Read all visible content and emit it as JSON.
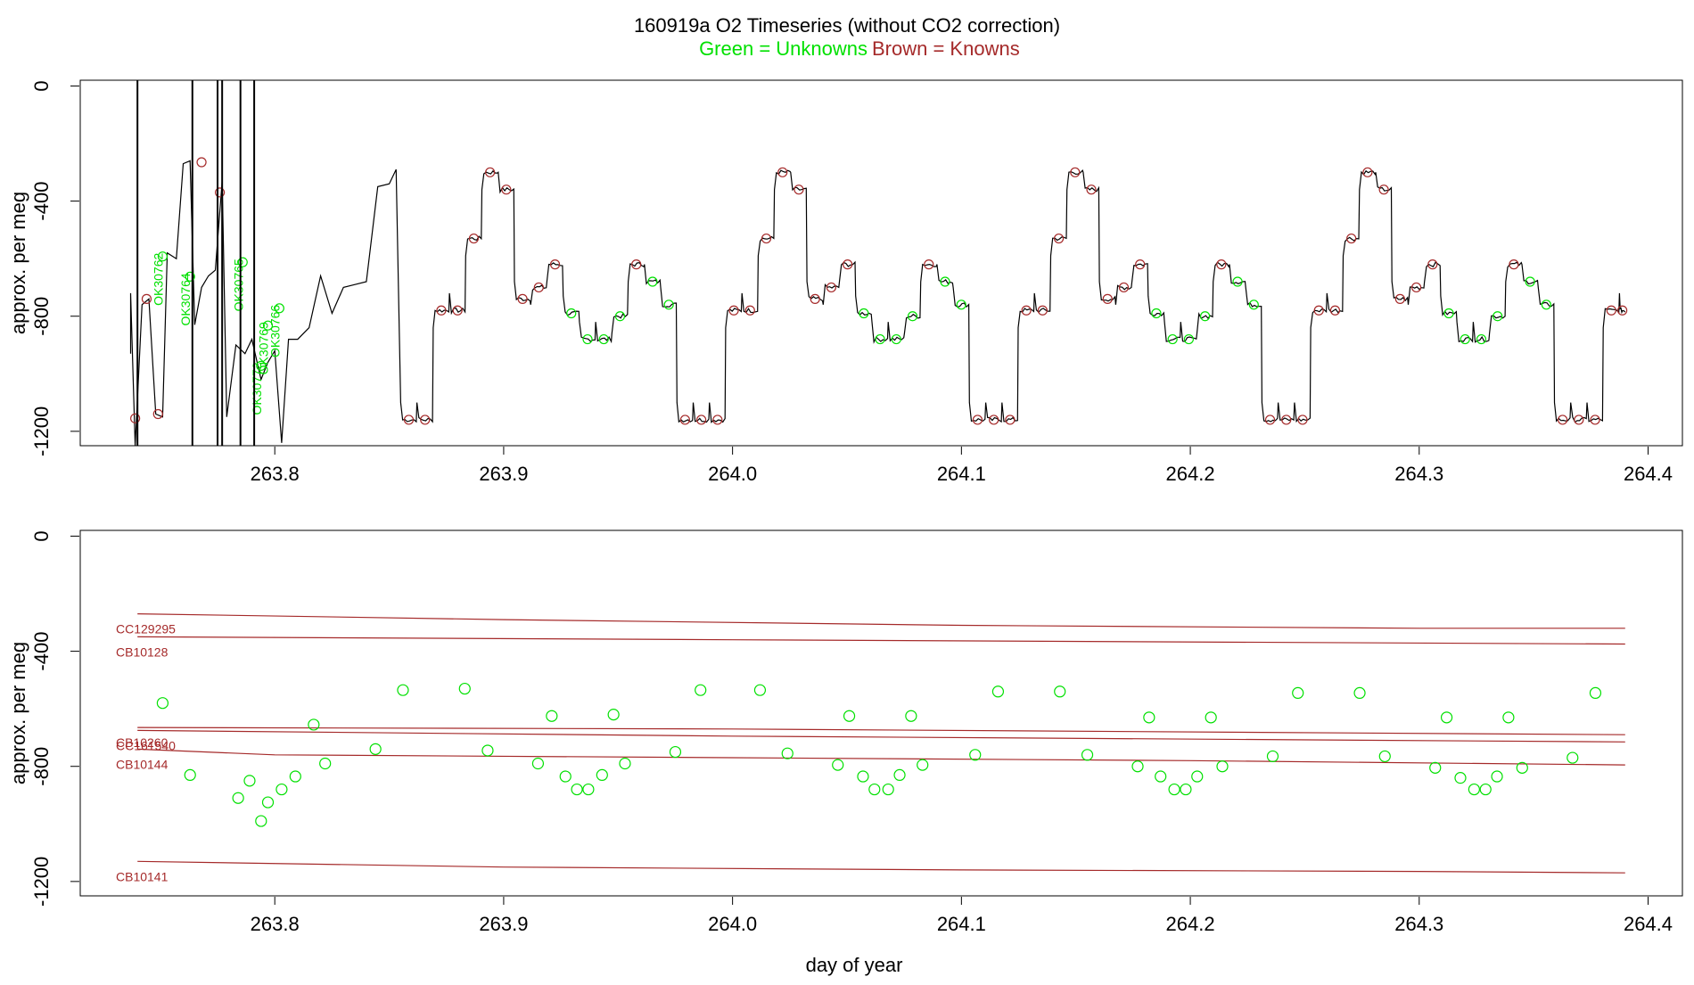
{
  "title": "160919a   O2 Timeseries (without CO2 correction)",
  "legend": {
    "unknowns_text": "Green = Unknowns",
    "knowns_text": "Brown = Knowns",
    "unknowns_color": "#00e000",
    "knowns_color": "#a52a2a"
  },
  "line_color": "#000000",
  "chart_data": [
    {
      "type": "line",
      "panel": "top",
      "ylabel": "approx. per meg",
      "xlabel": "",
      "xlim": [
        263.715,
        264.415
      ],
      "ylim": [
        -1250,
        20
      ],
      "x_ticks": [
        "263.8",
        "263.9",
        "264.0",
        "264.1",
        "264.2",
        "264.3",
        "264.4"
      ],
      "y_ticks": [
        "0",
        "-400",
        "-800",
        "-1200"
      ],
      "cycle_levels": [
        -1160,
        -1160,
        -780,
        -780,
        -530,
        -300,
        -360,
        -740,
        -700,
        -620,
        -790,
        -880,
        -880,
        -800,
        -620,
        -680,
        -760,
        -1160
      ],
      "cycle_step_days": 0.0071,
      "first_full_cycle_start": 263.855,
      "startup_spike_x": [
        263.74,
        263.764,
        263.775,
        263.777,
        263.785,
        263.791
      ],
      "known_points": [
        {
          "x": 263.739,
          "y": -1155
        },
        {
          "x": 263.744,
          "y": -740
        },
        {
          "x": 263.749,
          "y": -1140
        },
        {
          "x": 263.768,
          "y": -265
        },
        {
          "x": 263.776,
          "y": -370
        }
      ],
      "unknown_labels": [
        {
          "text": "OK30762",
          "x": 263.751,
          "y": -580
        },
        {
          "text": "OK30764",
          "x": 263.763,
          "y": -650
        },
        {
          "text": "OK30765",
          "x": 263.786,
          "y": -600
        },
        {
          "text": "OK30772",
          "x": 263.794,
          "y": -960
        },
        {
          "text": "OK30769",
          "x": 263.797,
          "y": -820
        },
        {
          "text": "OK30766",
          "x": 263.802,
          "y": -760
        }
      ]
    },
    {
      "type": "scatter",
      "panel": "bottom",
      "ylabel": "approx. per meg",
      "xlabel": "day of year",
      "xlim": [
        263.715,
        264.415
      ],
      "ylim": [
        -1250,
        20
      ],
      "x_ticks": [
        "263.8",
        "263.9",
        "264.0",
        "264.1",
        "264.2",
        "264.3",
        "264.4"
      ],
      "y_ticks": [
        "0",
        "-400",
        "-800",
        "-1200"
      ],
      "reference_lines": [
        {
          "name": "CC129295",
          "x": [
            263.74,
            263.9,
            264.1,
            264.3,
            264.39
          ],
          "y": [
            -270,
            -290,
            -310,
            -320,
            -320
          ]
        },
        {
          "name": "CB10128",
          "x": [
            263.74,
            264.0,
            264.39
          ],
          "y": [
            -350,
            -360,
            -375
          ]
        },
        {
          "name": "CB10260",
          "x": [
            263.74,
            264.0,
            264.39
          ],
          "y": [
            -665,
            -670,
            -690
          ]
        },
        {
          "name": "CC161540",
          "x": [
            263.74,
            264.0,
            264.39
          ],
          "y": [
            -675,
            -695,
            -715
          ]
        },
        {
          "name": "CB10144",
          "x": [
            263.74,
            263.8,
            264.0,
            264.2,
            264.39
          ],
          "y": [
            -740,
            -760,
            -770,
            -780,
            -795
          ]
        },
        {
          "name": "CB10141",
          "x": [
            263.74,
            263.9,
            264.1,
            264.3,
            264.39
          ],
          "y": [
            -1130,
            -1150,
            -1160,
            -1165,
            -1170
          ]
        }
      ],
      "unknowns": {
        "x": [
          263.751,
          263.763,
          263.784,
          263.789,
          263.794,
          263.797,
          263.803,
          263.809,
          263.817,
          263.822,
          263.844,
          263.856,
          263.883,
          263.893,
          263.915,
          263.921,
          263.927,
          263.932,
          263.937,
          263.943,
          263.948,
          263.953,
          263.975,
          263.986,
          264.012,
          264.024,
          264.046,
          264.051,
          264.057,
          264.062,
          264.068,
          264.073,
          264.078,
          264.083,
          264.106,
          264.116,
          264.143,
          264.155,
          264.177,
          264.182,
          264.187,
          264.193,
          264.198,
          264.203,
          264.209,
          264.214,
          264.236,
          264.247,
          264.274,
          264.285,
          264.307,
          264.312,
          264.318,
          264.324,
          264.329,
          264.334,
          264.339,
          264.345,
          264.367,
          264.377
        ],
        "y": [
          -580,
          -830,
          -910,
          -850,
          -990,
          -925,
          -880,
          -835,
          -655,
          -790,
          -740,
          -535,
          -530,
          -745,
          -790,
          -625,
          -835,
          -880,
          -880,
          -830,
          -620,
          -790,
          -750,
          -535,
          -535,
          -755,
          -795,
          -625,
          -835,
          -880,
          -880,
          -830,
          -625,
          -795,
          -760,
          -540,
          -540,
          -760,
          -800,
          -630,
          -835,
          -880,
          -880,
          -835,
          -630,
          -800,
          -765,
          -545,
          -545,
          -765,
          -805,
          -630,
          -840,
          -880,
          -880,
          -835,
          -630,
          -805,
          -770,
          -545
        ]
      }
    }
  ]
}
